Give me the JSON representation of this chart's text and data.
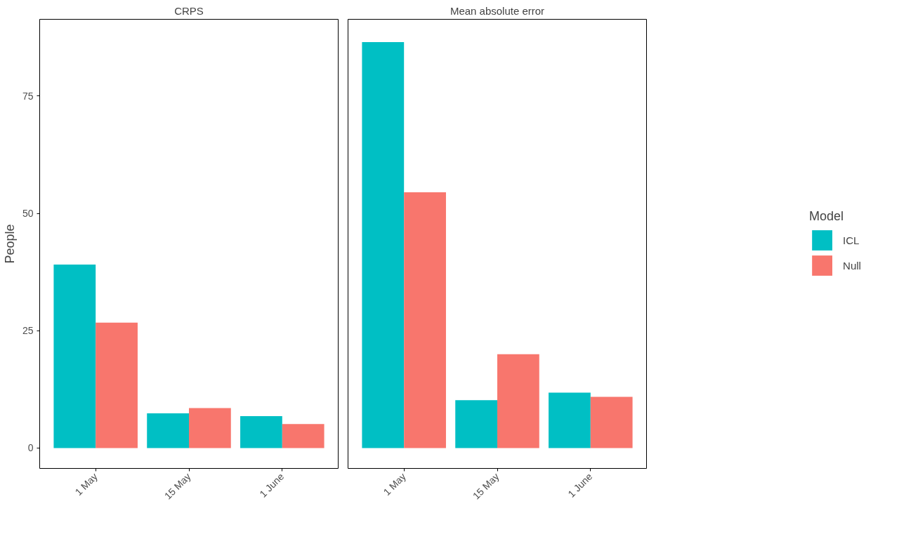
{
  "chart_data": [
    {
      "type": "bar",
      "title": "CRPS",
      "ylabel": "People",
      "categories": [
        "1 May",
        "15 May",
        "1 June"
      ],
      "ylim": [
        -4.35,
        91.35
      ],
      "yticks": [
        0,
        25,
        50,
        75
      ],
      "grid": false,
      "legend": false,
      "series": [
        {
          "color": "#00bfc4",
          "values": [
            39.1,
            7.4,
            6.8
          ]
        },
        {
          "color": "#f8766d",
          "values": [
            26.7,
            8.5,
            5.1
          ]
        }
      ]
    },
    {
      "type": "bar",
      "title": "Mean absolute error",
      "categories": [
        "1 May",
        "15 May",
        "1 June"
      ],
      "ylim": [
        -4.35,
        91.35
      ],
      "yticks": [
        0,
        25,
        50,
        75
      ],
      "grid": false,
      "tick_labels": "x",
      "legend": "right",
      "legend_title": "Model",
      "series": [
        {
          "name": "ICL",
          "color": "#00bfc4",
          "values": [
            86.5,
            10.2,
            11.8
          ]
        },
        {
          "name": "Null",
          "color": "#f8766d",
          "values": [
            54.5,
            20.0,
            10.9
          ]
        }
      ]
    }
  ]
}
